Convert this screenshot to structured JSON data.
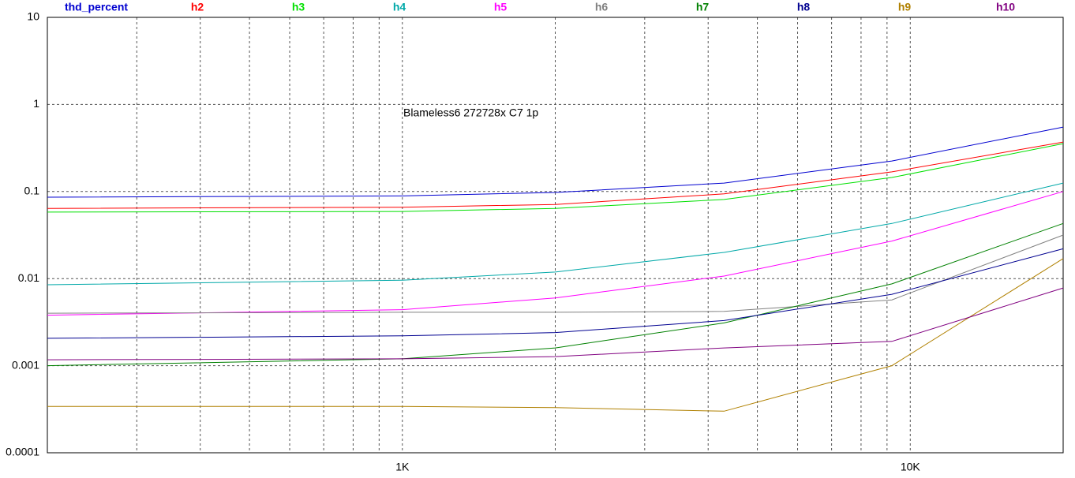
{
  "chart_data": {
    "type": "line",
    "annotation": "Blameless6 272728x C7 1p",
    "x": [
      200,
      1000,
      2000,
      4300,
      9200,
      20000
    ],
    "xlim": [
      200,
      20000
    ],
    "xticks": [
      {
        "value": 1000,
        "label": "1K"
      },
      {
        "value": 10000,
        "label": "10K"
      }
    ],
    "xminor": [
      300,
      400,
      500,
      600,
      700,
      800,
      900,
      2000,
      3000,
      4000,
      5000,
      6000,
      7000,
      8000,
      9000
    ],
    "ylim": [
      0.0001,
      10
    ],
    "yticks": [
      10,
      1,
      0.1,
      0.01,
      0.001,
      0.0001
    ],
    "xscale": "log",
    "yscale": "log",
    "grid": true,
    "series": [
      {
        "name": "thd_percent",
        "color": "#0000d0",
        "values": [
          0.086,
          0.089,
          0.0975,
          0.125,
          0.224,
          0.55
        ]
      },
      {
        "name": "h2",
        "color": "#ff0000",
        "values": [
          0.064,
          0.066,
          0.071,
          0.094,
          0.168,
          0.37
        ]
      },
      {
        "name": "h3",
        "color": "#00e000",
        "values": [
          0.058,
          0.059,
          0.064,
          0.081,
          0.145,
          0.355
        ]
      },
      {
        "name": "h4",
        "color": "#00a8a8",
        "values": [
          0.0085,
          0.0096,
          0.0119,
          0.02,
          0.043,
          0.125
        ]
      },
      {
        "name": "h5",
        "color": "#ff00ff",
        "values": [
          0.0038,
          0.0044,
          0.006,
          0.0107,
          0.027,
          0.1
        ]
      },
      {
        "name": "h6",
        "color": "#808080",
        "values": [
          0.004,
          0.0041,
          0.0041,
          0.0042,
          0.0057,
          0.0316
        ]
      },
      {
        "name": "h7",
        "color": "#008000",
        "values": [
          0.001,
          0.0012,
          0.0016,
          0.0031,
          0.0087,
          0.043
        ]
      },
      {
        "name": "h8",
        "color": "#000090",
        "values": [
          0.00206,
          0.0022,
          0.0024,
          0.0033,
          0.0066,
          0.022
        ]
      },
      {
        "name": "h9",
        "color": "#b08000",
        "values": [
          0.00034,
          0.00034,
          0.00033,
          0.0003,
          0.001,
          0.017
        ]
      },
      {
        "name": "h10",
        "color": "#800080",
        "values": [
          0.00117,
          0.0012,
          0.00127,
          0.0016,
          0.0019,
          0.0078
        ]
      }
    ]
  }
}
